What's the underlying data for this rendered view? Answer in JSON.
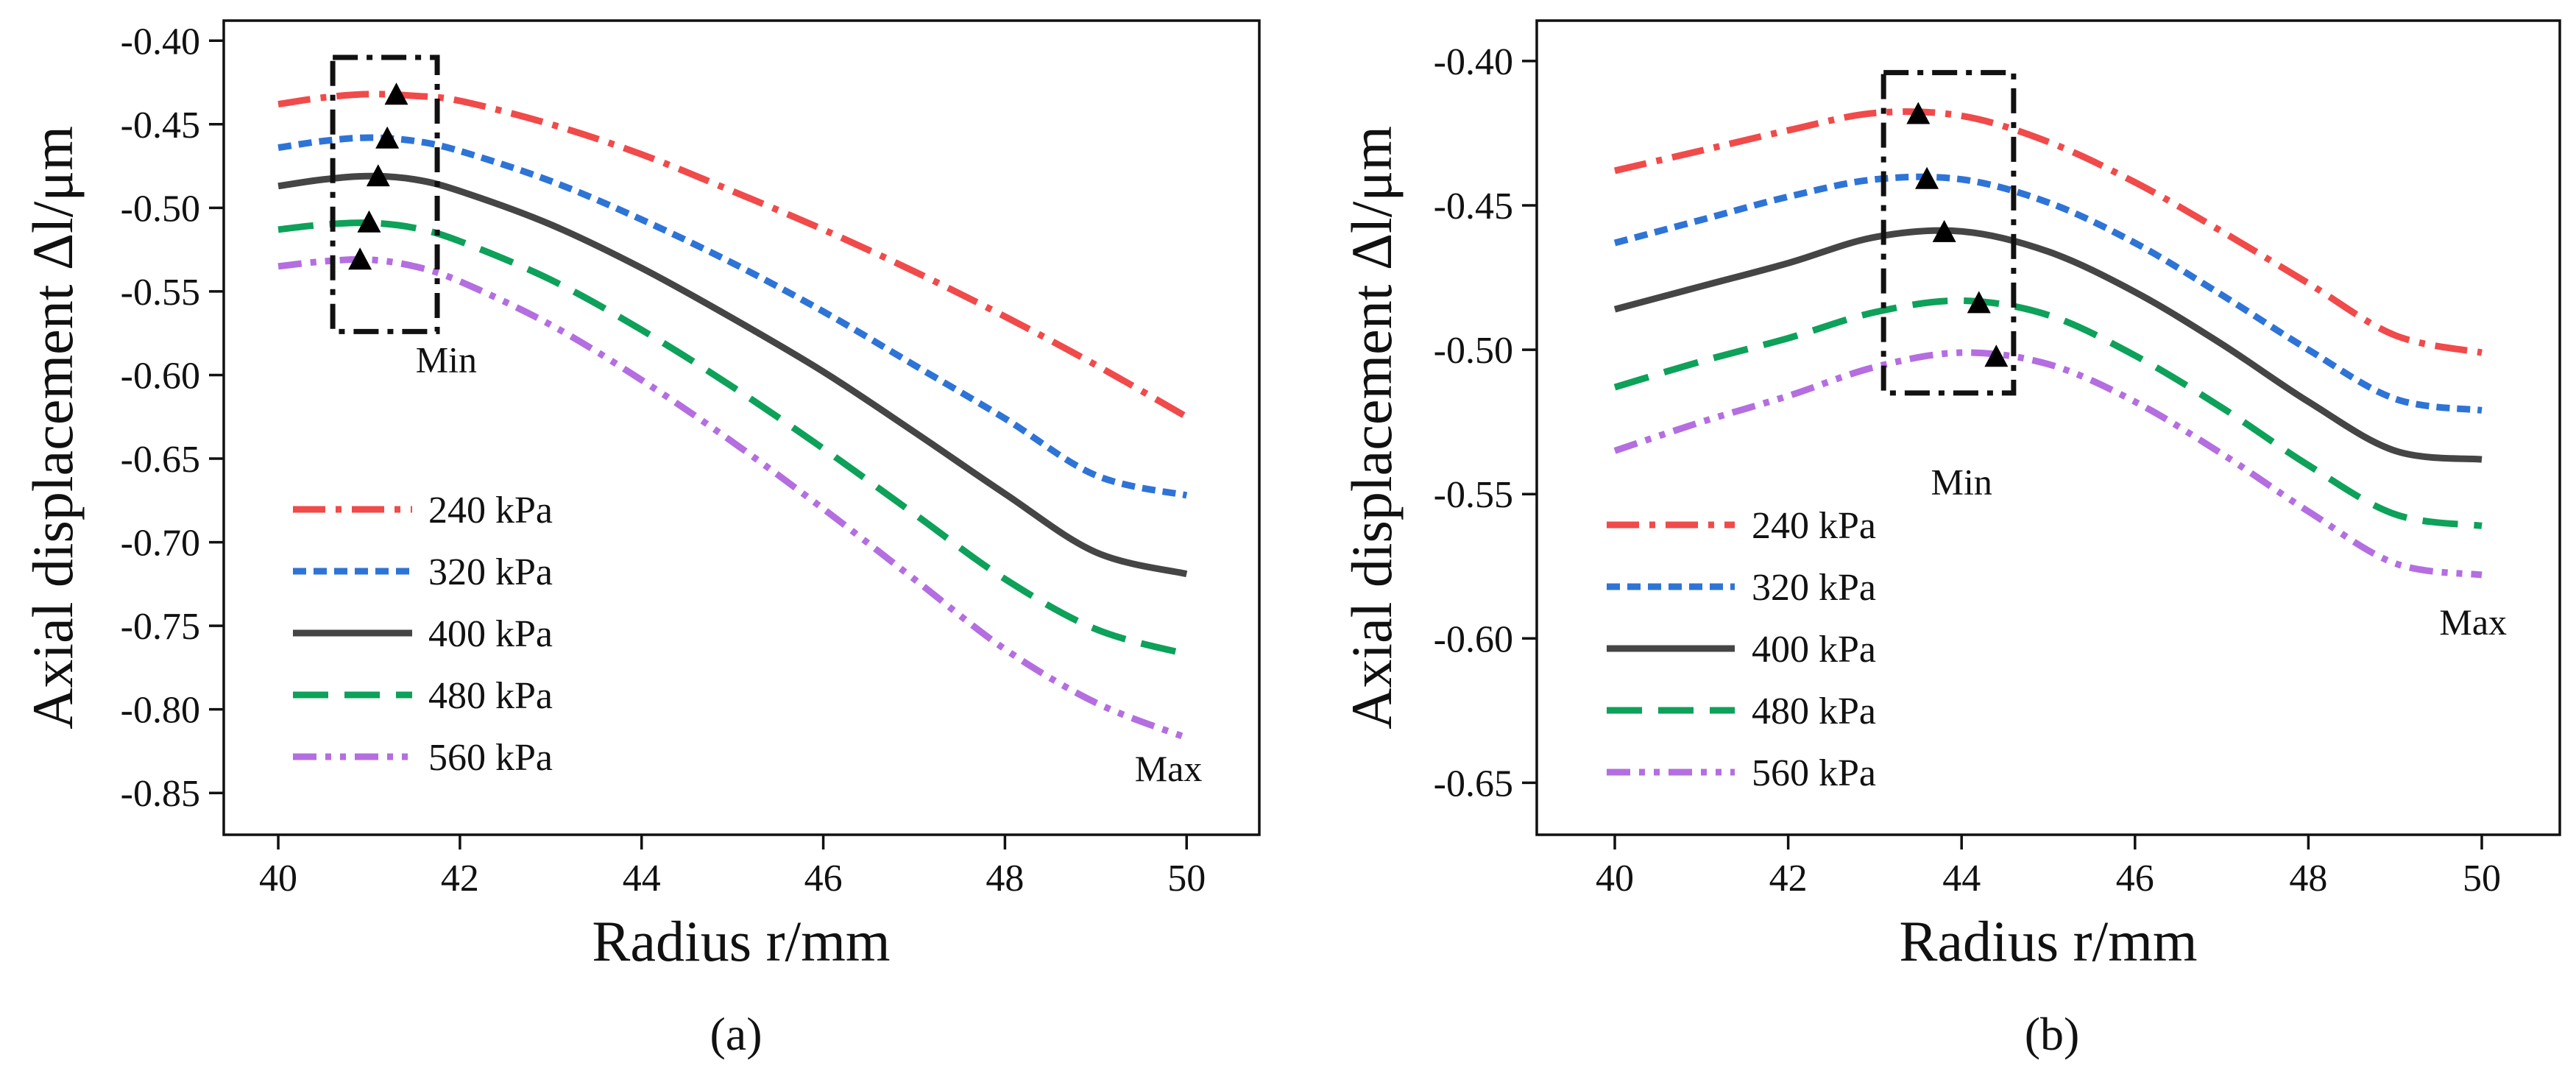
{
  "chart_data": [
    {
      "type": "line",
      "panel_label": "(a)",
      "xlabel": "Radius r/mm",
      "ylabel": "Axial displacement  Δl/μm",
      "xlim": [
        39.4,
        50.8
      ],
      "ylim": [
        -0.875,
        -0.388
      ],
      "xticks": [
        40,
        42,
        44,
        46,
        48,
        50
      ],
      "yticks": [
        -0.4,
        -0.45,
        -0.5,
        -0.55,
        -0.6,
        -0.65,
        -0.7,
        -0.75,
        -0.8,
        -0.85
      ],
      "legend_placement": "lower-left",
      "series": [
        {
          "name": "240 kPa",
          "color": "#f04a4a",
          "dash": "dashdot",
          "min_r": 41.3,
          "x": [
            40,
            40.5,
            41,
            41.5,
            42,
            43,
            44,
            45,
            46,
            47,
            48,
            49,
            50
          ],
          "y": [
            -0.438,
            -0.434,
            -0.432,
            -0.433,
            -0.436,
            -0.45,
            -0.468,
            -0.49,
            -0.513,
            -0.538,
            -0.565,
            -0.594,
            -0.625
          ]
        },
        {
          "name": "320 kPa",
          "color": "#2e74d6",
          "dash": "dash",
          "min_r": 41.2,
          "x": [
            40,
            40.5,
            41,
            41.5,
            42,
            43,
            44,
            45,
            46,
            47,
            48,
            49,
            50
          ],
          "y": [
            -0.464,
            -0.46,
            -0.458,
            -0.46,
            -0.466,
            -0.484,
            -0.507,
            -0.533,
            -0.562,
            -0.594,
            -0.626,
            -0.66,
            -0.672
          ]
        },
        {
          "name": "400 kPa",
          "color": "#454545",
          "dash": "solid",
          "min_r": 41.1,
          "x": [
            40,
            40.5,
            41,
            41.5,
            42,
            43,
            44,
            45,
            46,
            47,
            48,
            49,
            50
          ],
          "y": [
            -0.487,
            -0.483,
            -0.481,
            -0.483,
            -0.49,
            -0.51,
            -0.536,
            -0.566,
            -0.598,
            -0.634,
            -0.671,
            -0.706,
            -0.719
          ]
        },
        {
          "name": "480 kPa",
          "color": "#0da15a",
          "dash": "longdash",
          "min_r": 41.0,
          "x": [
            40,
            40.5,
            41,
            41.5,
            42,
            43,
            44,
            45,
            46,
            47,
            48,
            49,
            50
          ],
          "y": [
            -0.513,
            -0.51,
            -0.509,
            -0.512,
            -0.52,
            -0.543,
            -0.573,
            -0.607,
            -0.644,
            -0.683,
            -0.722,
            -0.752,
            -0.767
          ]
        },
        {
          "name": "560 kPa",
          "color": "#b46ee0",
          "dash": "dashdotdot",
          "min_r": 40.9,
          "x": [
            40,
            40.5,
            41,
            41.5,
            42,
            43,
            44,
            45,
            46,
            47,
            48,
            49,
            50
          ],
          "y": [
            -0.535,
            -0.532,
            -0.531,
            -0.535,
            -0.544,
            -0.57,
            -0.603,
            -0.64,
            -0.68,
            -0.722,
            -0.764,
            -0.796,
            -0.817
          ]
        }
      ],
      "annotations": {
        "min_label": "Min",
        "max_label": "Max",
        "min_box": {
          "x": [
            40.6,
            41.75
          ],
          "y": [
            -0.41,
            -0.574
          ]
        },
        "min_label_at": [
          41.85,
          -0.574
        ],
        "max_label_at": [
          49.8,
          -0.835
        ]
      }
    },
    {
      "type": "line",
      "panel_label": "(b)",
      "xlabel": "Radius r/mm",
      "ylabel": "Axial displacement  Δl/μm",
      "xlim": [
        39.1,
        50.9
      ],
      "ylim": [
        -0.668,
        -0.386
      ],
      "xticks": [
        40,
        42,
        44,
        46,
        48,
        50
      ],
      "yticks": [
        -0.4,
        -0.45,
        -0.5,
        -0.55,
        -0.6,
        -0.65
      ],
      "legend_placement": "lower-left",
      "series": [
        {
          "name": "240 kPa",
          "color": "#f04a4a",
          "dash": "dashdot",
          "min_r": 43.5,
          "x": [
            40,
            41,
            42,
            43,
            44,
            45,
            46,
            47,
            48,
            49,
            50
          ],
          "y": [
            -0.438,
            -0.431,
            -0.424,
            -0.418,
            -0.419,
            -0.428,
            -0.442,
            -0.459,
            -0.477,
            -0.495,
            -0.501
          ]
        },
        {
          "name": "320 kPa",
          "color": "#2e74d6",
          "dash": "dash",
          "min_r": 43.6,
          "x": [
            40,
            41,
            42,
            43,
            44,
            45,
            46,
            47,
            48,
            49,
            50
          ],
          "y": [
            -0.463,
            -0.455,
            -0.447,
            -0.441,
            -0.441,
            -0.449,
            -0.463,
            -0.481,
            -0.5,
            -0.517,
            -0.521
          ]
        },
        {
          "name": "400 kPa",
          "color": "#454545",
          "dash": "solid",
          "min_r": 43.8,
          "x": [
            40,
            41,
            42,
            43,
            44,
            45,
            46,
            47,
            48,
            49,
            50
          ],
          "y": [
            -0.486,
            -0.478,
            -0.47,
            -0.461,
            -0.459,
            -0.466,
            -0.48,
            -0.498,
            -0.518,
            -0.535,
            -0.538
          ]
        },
        {
          "name": "480 kPa",
          "color": "#0da15a",
          "dash": "longdash",
          "min_r": 44.2,
          "x": [
            40,
            41,
            42,
            43,
            44,
            45,
            46,
            47,
            48,
            49,
            50
          ],
          "y": [
            -0.513,
            -0.504,
            -0.496,
            -0.487,
            -0.483,
            -0.488,
            -0.502,
            -0.52,
            -0.54,
            -0.557,
            -0.561
          ]
        },
        {
          "name": "560 kPa",
          "color": "#b46ee0",
          "dash": "dashdotdot",
          "min_r": 44.4,
          "x": [
            40,
            41,
            42,
            43,
            44,
            45,
            46,
            47,
            48,
            49,
            50
          ],
          "y": [
            -0.535,
            -0.525,
            -0.516,
            -0.506,
            -0.501,
            -0.505,
            -0.518,
            -0.536,
            -0.556,
            -0.574,
            -0.578
          ]
        }
      ],
      "annotations": {
        "min_label": "Min",
        "max_label": "Max",
        "min_box": {
          "x": [
            43.1,
            44.6
          ],
          "y": [
            -0.404,
            -0.515
          ]
        },
        "min_label_at": [
          44.0,
          -0.536
        ],
        "max_label_at": [
          49.9,
          -0.594
        ]
      }
    }
  ]
}
